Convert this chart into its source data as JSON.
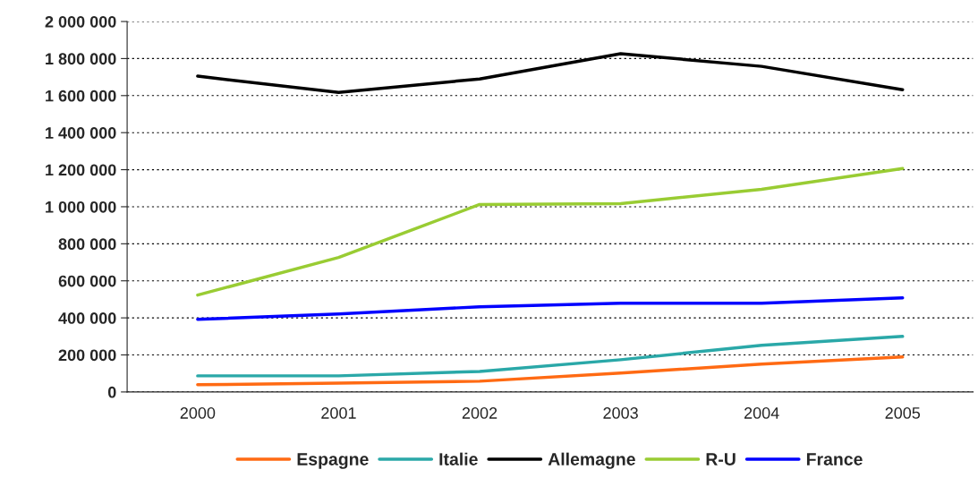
{
  "chart_data": {
    "type": "line",
    "categories": [
      "2000",
      "2001",
      "2002",
      "2003",
      "2004",
      "2005"
    ],
    "series": [
      {
        "name": "Espagne",
        "color": "#ff6a13",
        "values": [
          39000,
          48000,
          58000,
          102000,
          150000,
          189000
        ]
      },
      {
        "name": "Italie",
        "color": "#2aa8a8",
        "values": [
          87000,
          87000,
          111000,
          174000,
          252000,
          300000
        ]
      },
      {
        "name": "Allemagne",
        "color": "#000000",
        "values": [
          1705000,
          1617000,
          1690000,
          1826000,
          1758000,
          1632000
        ]
      },
      {
        "name": "R-U",
        "color": "#99cc33",
        "values": [
          523000,
          726000,
          1012000,
          1017000,
          1094000,
          1206000
        ]
      },
      {
        "name": "France",
        "color": "#0000ff",
        "values": [
          392000,
          421000,
          460000,
          479000,
          479000,
          508000
        ]
      }
    ],
    "ylim": [
      0,
      2000000
    ],
    "yticks": [
      0,
      {
        "value": 200000,
        "label": "200 000"
      },
      {
        "value": 400000,
        "label": "400 000"
      },
      {
        "value": 600000,
        "label": "600 000"
      },
      {
        "value": 800000,
        "label": "800 000"
      },
      {
        "value": 1000000,
        "label": "1 000 000"
      },
      {
        "value": 1200000,
        "label": "1 200 000"
      },
      {
        "value": 1400000,
        "label": "1 400 000"
      },
      {
        "value": 1600000,
        "label": "1 600 000"
      },
      {
        "value": 1800000,
        "label": "1 800 000"
      },
      {
        "value": 2000000,
        "label": "2 000 000"
      }
    ],
    "grid": "y",
    "legend": "bottom",
    "marker": "none",
    "line_style": "solid"
  }
}
